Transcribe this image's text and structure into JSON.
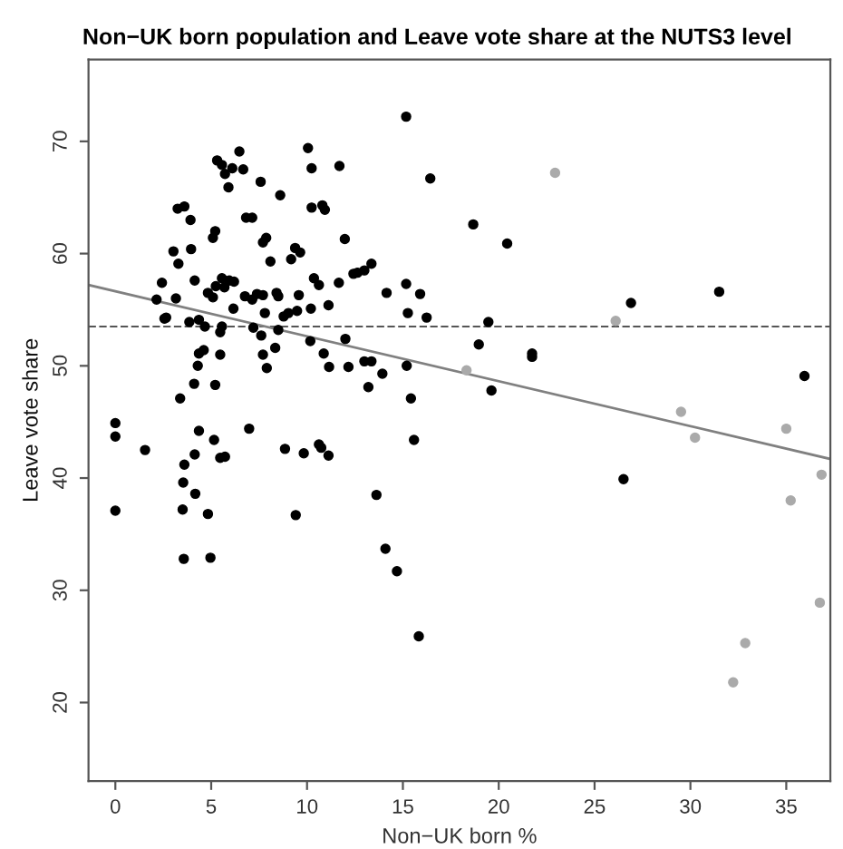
{
  "chart_data": {
    "type": "scatter",
    "title": "Non−UK born population and Leave vote share at the NUTS3 level",
    "xlabel": "Non−UK born %",
    "ylabel": "Leave vote share",
    "xlim": [
      -1.4,
      37.3
    ],
    "ylim": [
      13.0,
      77.3
    ],
    "xticks": [
      0,
      5,
      10,
      15,
      20,
      25,
      30,
      35
    ],
    "yticks": [
      20,
      30,
      40,
      50,
      60,
      70
    ],
    "grid": false,
    "legend": false,
    "marker": "circle",
    "ref_lines": [
      {
        "axis": "y",
        "value": 53.5,
        "label": null,
        "color": "#555555",
        "line_style": "dashed"
      }
    ],
    "series": [
      {
        "color": "#000000",
        "x": [
          6.47,
          5.31,
          5.56,
          6.1,
          6.67,
          5.72,
          5.9,
          10.05,
          10.24,
          11.69,
          7.58,
          8.6,
          3.25,
          3.6,
          3.92,
          6.82,
          7.14,
          10.24,
          10.8,
          10.93,
          5.21,
          5.09,
          7.87,
          7.7,
          11.97,
          3.03,
          3.95,
          3.29,
          9.38,
          9.64,
          8.09,
          9.17,
          12.42,
          12.63,
          2.43,
          4.14,
          5.24,
          5.56,
          5.94,
          6.19,
          5.69,
          4.83,
          5.09,
          2.15,
          3.16,
          6.76,
          7.14,
          7.39,
          7.7,
          8.41,
          8.5,
          9.57,
          10.36,
          10.62,
          11.66,
          6.16,
          7.8,
          8.78,
          9.03,
          9.48,
          10.2,
          11.12,
          2.65,
          2.56,
          3.86,
          4.36,
          4.67,
          5.47,
          5.56,
          7.2,
          7.61,
          8.5,
          10.17,
          12.0,
          10.87,
          4.36,
          4.61,
          5.47,
          7.7,
          8.34,
          7.9,
          11.15,
          12.16,
          12.99,
          4.11,
          5.21,
          6.98,
          4.14,
          9.83,
          10.62,
          11.12,
          15.17,
          16.43,
          18.67,
          20.44,
          12.99,
          13.36,
          14.15,
          15.17,
          15.9,
          15.26,
          16.24,
          19.46,
          18.96,
          21.74,
          21.74,
          13.36,
          13.93,
          15.2,
          13.2,
          15.42,
          15.58,
          19.62,
          13.62,
          14.69,
          26.51,
          35.95,
          26.9,
          31.5
        ],
        "values": [
          69.1,
          68.3,
          67.9,
          67.6,
          67.5,
          67.1,
          65.9,
          69.4,
          67.6,
          67.8,
          66.4,
          65.2,
          64.0,
          64.2,
          63.0,
          63.2,
          63.2,
          64.1,
          64.3,
          63.9,
          62.0,
          61.4,
          61.4,
          61.0,
          61.3,
          60.2,
          60.4,
          59.1,
          60.5,
          60.1,
          59.3,
          59.5,
          58.2,
          58.3,
          57.4,
          57.6,
          57.1,
          57.8,
          57.6,
          57.5,
          57.0,
          56.5,
          56.1,
          55.9,
          56.0,
          56.2,
          55.9,
          56.4,
          56.3,
          56.5,
          56.2,
          56.3,
          57.8,
          57.2,
          57.4,
          55.1,
          54.7,
          54.4,
          54.7,
          54.9,
          55.1,
          55.4,
          54.3,
          54.2,
          53.9,
          54.1,
          53.5,
          53.0,
          53.5,
          53.4,
          52.7,
          53.2,
          52.2,
          52.4,
          51.1,
          51.1,
          51.4,
          51.0,
          51.0,
          51.6,
          49.8,
          49.9,
          49.9,
          50.4,
          48.4,
          48.3,
          44.4,
          42.1,
          42.2,
          43.0,
          42.0,
          72.2,
          66.7,
          62.6,
          60.9,
          58.5,
          59.1,
          56.5,
          57.3,
          56.4,
          54.7,
          54.3,
          53.9,
          51.9,
          51.1,
          50.8,
          50.4,
          49.3,
          50.0,
          48.1,
          47.1,
          43.4,
          47.8,
          38.5,
          31.7,
          39.9,
          49.1,
          55.6,
          56.6
        ]
      },
      {
        "color": "#000000",
        "x": [
          4.3,
          3.38,
          0,
          0,
          1.55,
          4.36,
          5.15,
          5.47,
          5.72,
          3.6,
          3.54,
          4.17,
          0,
          3.51,
          4.83,
          8.85,
          10.74,
          9.41,
          3.57,
          4.96,
          14.09,
          15.83
        ],
        "values": [
          50.0,
          47.1,
          44.9,
          43.7,
          42.5,
          44.2,
          43.4,
          41.8,
          41.9,
          41.2,
          39.6,
          38.6,
          37.1,
          37.2,
          36.8,
          42.6,
          42.7,
          36.7,
          32.8,
          32.9,
          33.7,
          25.9
        ]
      },
      {
        "color": "#aaaaaa",
        "x": [
          22.94,
          18.32,
          26.1,
          29.51,
          30.24,
          35.0,
          36.84,
          35.23,
          36.75,
          32.86,
          32.23
        ],
        "values": [
          67.2,
          49.6,
          54.0,
          45.9,
          43.6,
          44.4,
          40.3,
          38.0,
          28.9,
          25.3,
          21.8
        ]
      },
      {
        "type": "line",
        "color": "#808080",
        "x": [
          -1.4,
          37.3
        ],
        "values": [
          57.2,
          41.7
        ],
        "marker": "none",
        "line_style": "solid"
      }
    ]
  }
}
